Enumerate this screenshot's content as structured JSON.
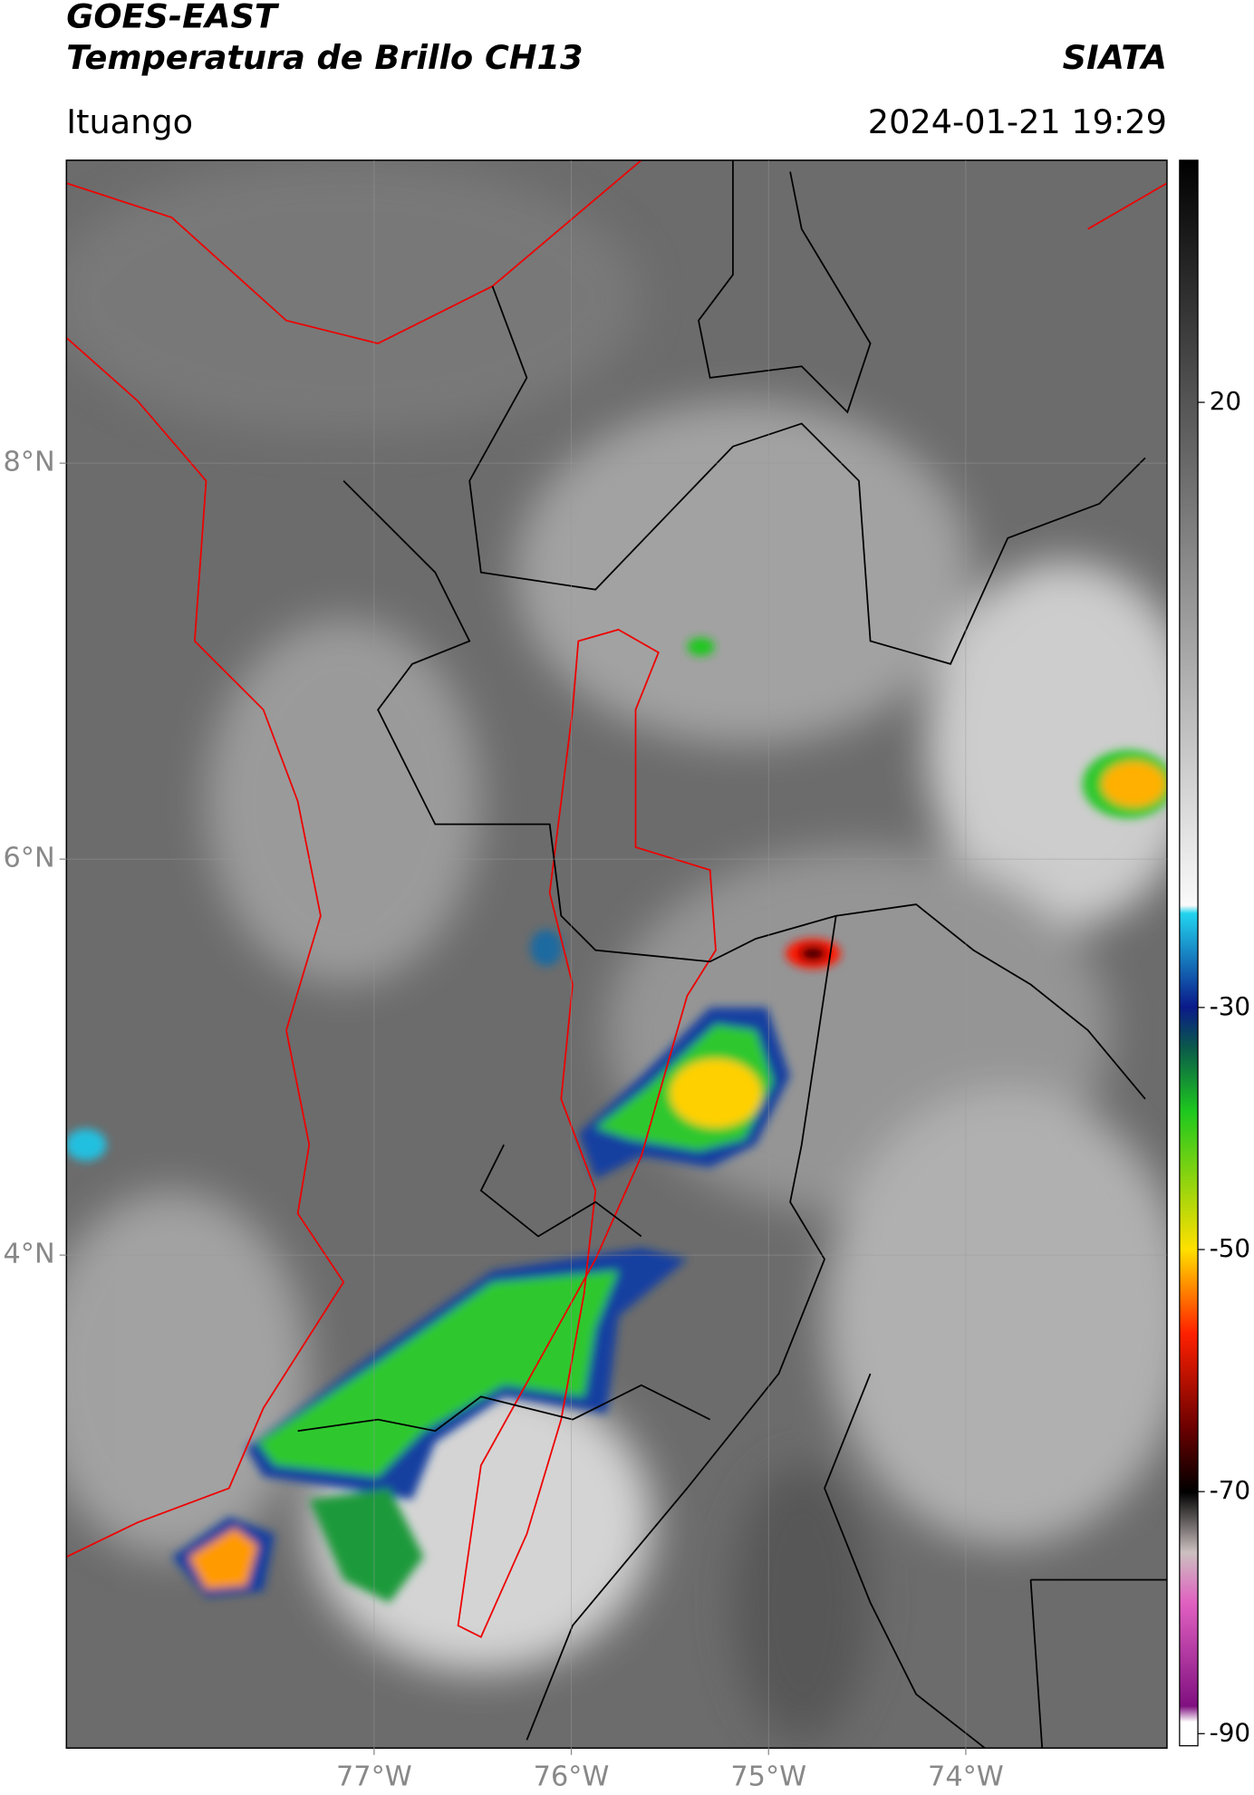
{
  "header": {
    "satellite": "GOES-EAST",
    "product": "Temperatura de Brillo CH13",
    "agency": "SIATA",
    "location": "Ituango",
    "datetime": "2024-01-21 19:29"
  },
  "map": {
    "xlim": [
      -78.56,
      -72.98
    ],
    "ylim": [
      1.51,
      9.53
    ],
    "xticks": [
      {
        "value": -77,
        "label": "77°W"
      },
      {
        "value": -76,
        "label": "76°W"
      },
      {
        "value": -75,
        "label": "75°W"
      },
      {
        "value": -74,
        "label": "74°W"
      }
    ],
    "yticks": [
      {
        "value": 8,
        "label": "8°N"
      },
      {
        "value": 6,
        "label": "6°N"
      },
      {
        "value": 4,
        "label": "4°N"
      }
    ],
    "grid": true
  },
  "colorbar": {
    "lim": [
      -91,
      40
    ],
    "ticks": [
      20,
      -30,
      -50,
      -70,
      -90
    ]
  }
}
